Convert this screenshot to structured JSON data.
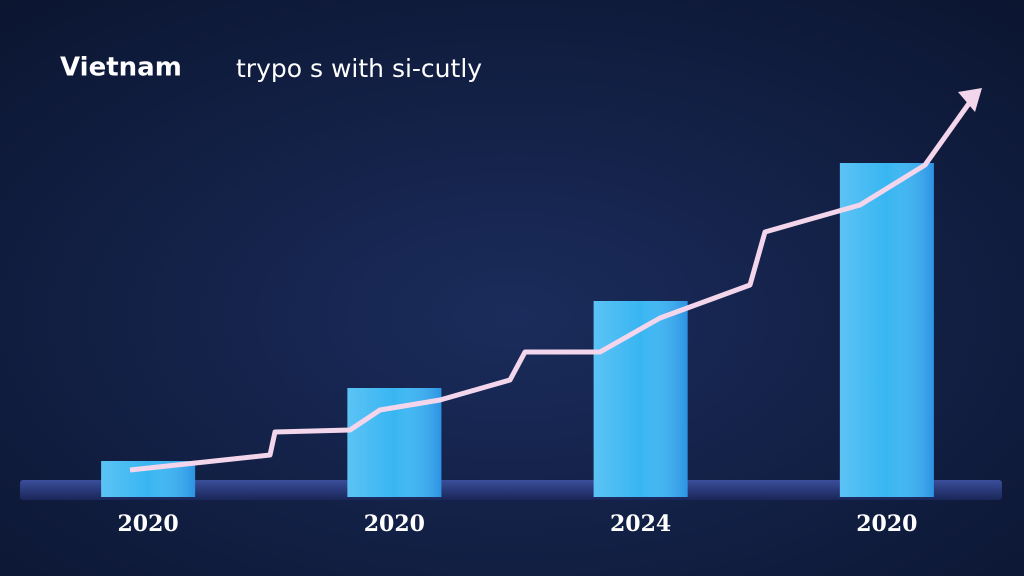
{
  "chart_data": {
    "type": "bar",
    "title": "Vietnam",
    "subtitle": "trypo s with si-cutly",
    "categories": [
      "2020",
      "2020",
      "2024",
      "2020"
    ],
    "values": [
      36,
      109,
      196,
      334
    ],
    "color": "#38b6f2"
  }
}
